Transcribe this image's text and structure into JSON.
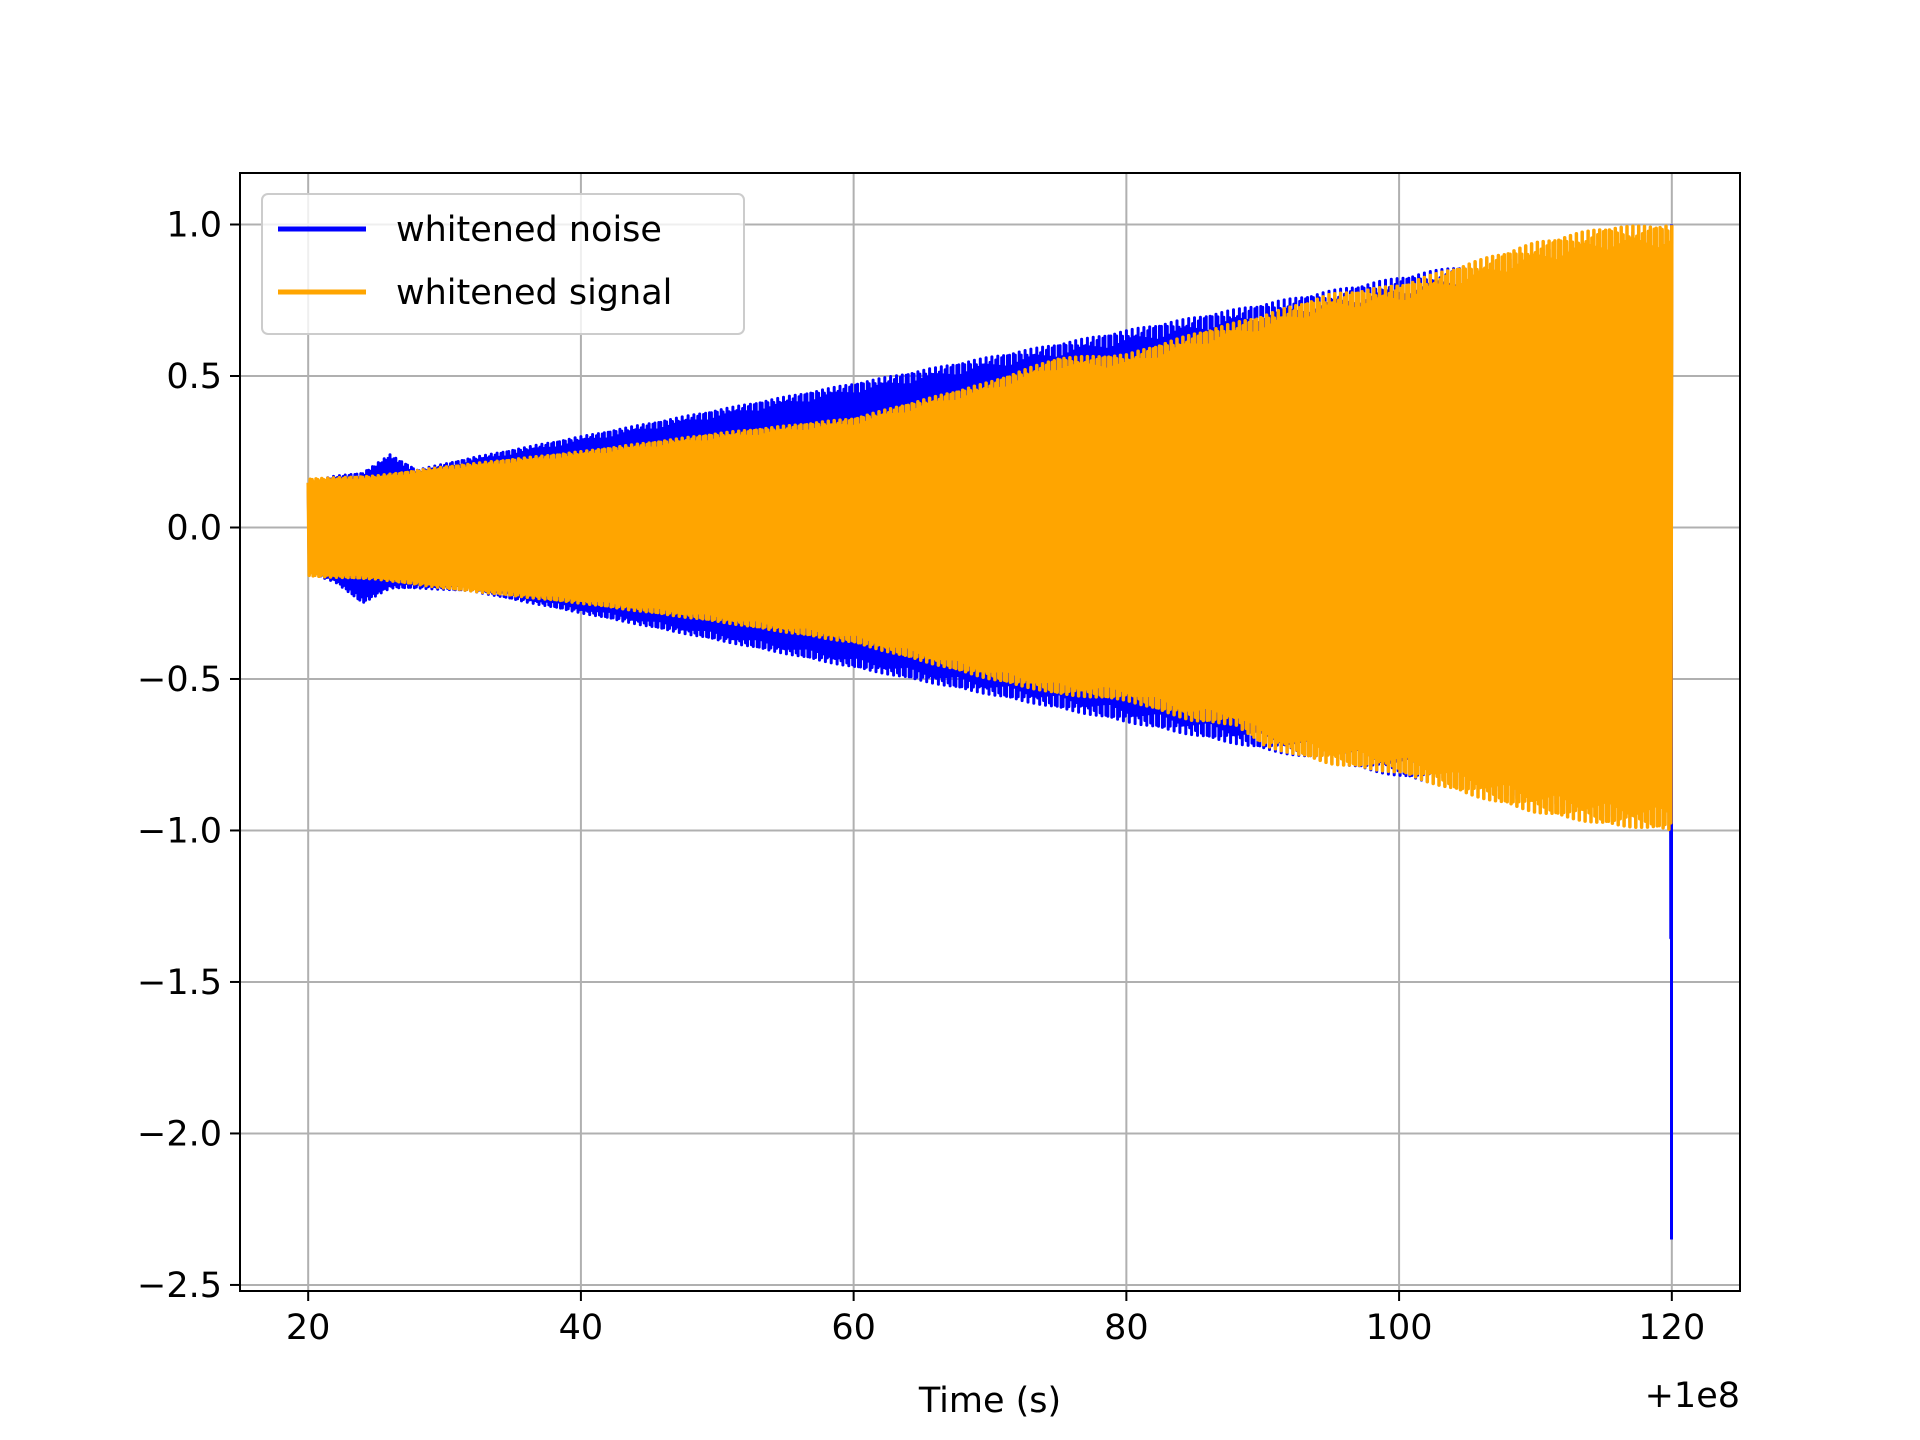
{
  "chart_data": {
    "type": "line",
    "title": "",
    "xlabel": "Time (s)",
    "ylabel": "",
    "x_offset_label": "+1e8",
    "xlim": [
      15,
      125
    ],
    "ylim": [
      -2.52,
      1.17
    ],
    "grid": true,
    "legend_position": "upper-left",
    "x_ticks": [
      20,
      40,
      60,
      80,
      100,
      120
    ],
    "x_tick_labels": [
      "20",
      "40",
      "60",
      "80",
      "100",
      "120"
    ],
    "y_ticks": [
      1.0,
      0.5,
      0.0,
      -0.5,
      -1.0,
      -1.5,
      -2.0,
      -2.5
    ],
    "y_tick_labels": [
      "1.0",
      "0.5",
      "0.0",
      "−0.5",
      "−1.0",
      "−1.5",
      "−2.0",
      "−2.5"
    ],
    "series": [
      {
        "name": "whitened noise",
        "color": "#0000ff",
        "x_range": [
          20,
          120
        ],
        "envelope_upper": [
          [
            20,
            0.15
          ],
          [
            22,
            0.17
          ],
          [
            24,
            0.18
          ],
          [
            26,
            0.24
          ],
          [
            28,
            0.19
          ],
          [
            32,
            0.23
          ],
          [
            120,
            1.0
          ]
        ],
        "envelope_lower": [
          [
            20,
            -0.15
          ],
          [
            22,
            -0.18
          ],
          [
            24,
            -0.25
          ],
          [
            26,
            -0.2
          ],
          [
            28,
            -0.2
          ],
          [
            32,
            -0.21
          ],
          [
            119.9,
            -1.0
          ],
          [
            120,
            -2.35
          ]
        ],
        "notes_values": {
          "final_spike_min": -2.35,
          "final_spike_max": 1.0
        }
      },
      {
        "name": "whitened signal",
        "color": "#ffa500",
        "x_range": [
          20,
          120
        ],
        "envelope_upper": [
          [
            20,
            0.16
          ],
          [
            25,
            0.17
          ],
          [
            30,
            0.2
          ],
          [
            40,
            0.25
          ],
          [
            50,
            0.31
          ],
          [
            60,
            0.36
          ],
          [
            70,
            0.48
          ],
          [
            75,
            0.56
          ],
          [
            80,
            0.57
          ],
          [
            85,
            0.64
          ],
          [
            90,
            0.7
          ],
          [
            95,
            0.77
          ],
          [
            100,
            0.8
          ],
          [
            105,
            0.87
          ],
          [
            110,
            0.94
          ],
          [
            115,
            0.99
          ],
          [
            120,
            1.0
          ]
        ],
        "envelope_lower": [
          [
            20,
            -0.16
          ],
          [
            25,
            -0.17
          ],
          [
            30,
            -0.2
          ],
          [
            40,
            -0.25
          ],
          [
            50,
            -0.31
          ],
          [
            60,
            -0.38
          ],
          [
            70,
            -0.5
          ],
          [
            75,
            -0.55
          ],
          [
            80,
            -0.57
          ],
          [
            85,
            -0.64
          ],
          [
            88,
            -0.65
          ],
          [
            90,
            -0.72
          ],
          [
            95,
            -0.78
          ],
          [
            100,
            -0.81
          ],
          [
            105,
            -0.88
          ],
          [
            110,
            -0.94
          ],
          [
            115,
            -0.98
          ],
          [
            120,
            -1.0
          ]
        ]
      }
    ]
  }
}
